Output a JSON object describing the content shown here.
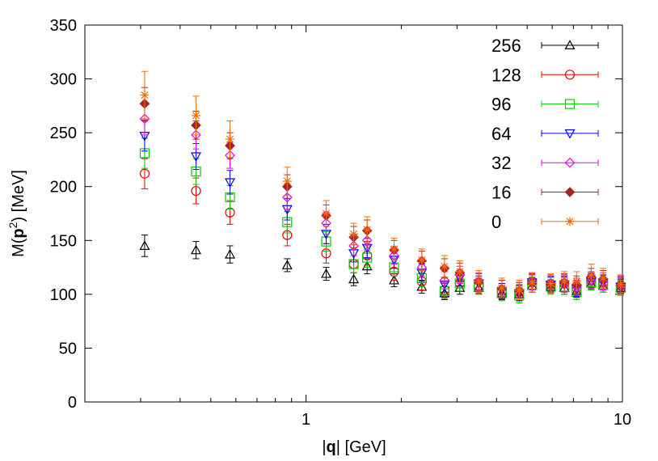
{
  "chart_data": {
    "type": "scatter",
    "title": "",
    "xlabel": {
      "pre": "|",
      "bold": "q",
      "post": "| [GeV]"
    },
    "ylabel": {
      "pre": "M(",
      "bold": "p",
      "sup": "2",
      "post": ") [MeV]"
    },
    "xscale": "log",
    "xlim": [
      0.2,
      10
    ],
    "ylim": [
      0,
      350
    ],
    "xticks": [
      {
        "v": 1,
        "label": "1"
      },
      {
        "v": 10,
        "label": "10"
      }
    ],
    "yticks": [
      {
        "v": 0,
        "label": "0"
      },
      {
        "v": 50,
        "label": "50"
      },
      {
        "v": 100,
        "label": "100"
      },
      {
        "v": 150,
        "label": "150"
      },
      {
        "v": 200,
        "label": "200"
      },
      {
        "v": 250,
        "label": "250"
      },
      {
        "v": 300,
        "label": "300"
      },
      {
        "v": 350,
        "label": "350"
      }
    ],
    "grid": false,
    "legend_position": "top-right",
    "x": [
      0.309,
      0.449,
      0.575,
      0.872,
      1.158,
      1.415,
      1.56,
      1.898,
      2.322,
      2.74,
      3.062,
      3.515,
      4.157,
      4.718,
      5.181,
      5.936,
      6.552,
      7.166,
      7.967,
      8.69,
      9.874
    ],
    "series": [
      {
        "name": "256",
        "marker": "triangle-up",
        "color": "#000000",
        "y": [
          145,
          141,
          137,
          127,
          119,
          114,
          126,
          113,
          107,
          101,
          106,
          106,
          101,
          100,
          108,
          107,
          106,
          103,
          110,
          108,
          106
        ],
        "err": [
          10,
          8,
          8,
          6,
          6,
          6,
          7,
          6,
          6,
          6,
          6,
          6,
          6,
          6,
          6,
          6,
          6,
          6,
          6,
          6,
          6
        ]
      },
      {
        "name": "128",
        "marker": "circle",
        "color": "#ee0000",
        "y": [
          212,
          196,
          176,
          155,
          138,
          128,
          136,
          121,
          112,
          104,
          110,
          108,
          103,
          102,
          112,
          109,
          110,
          106,
          113,
          111,
          108
        ],
        "err": [
          14,
          12,
          11,
          10,
          9,
          8,
          9,
          8,
          8,
          7,
          7,
          7,
          7,
          7,
          7,
          7,
          7,
          7,
          7,
          7,
          7
        ]
      },
      {
        "name": "96",
        "marker": "square",
        "color": "#00cc00",
        "y": [
          231,
          214,
          190,
          167,
          149,
          128,
          134,
          125,
          115,
          103,
          110,
          107,
          101,
          99,
          109,
          107,
          107,
          102,
          111,
          109,
          106
        ],
        "err": [
          14,
          12,
          11,
          10,
          9,
          8,
          9,
          8,
          8,
          7,
          7,
          7,
          7,
          7,
          7,
          7,
          7,
          7,
          7,
          7,
          7
        ]
      },
      {
        "name": "64",
        "marker": "triangle-down",
        "color": "#0000ee",
        "y": [
          247,
          228,
          204,
          179,
          156,
          138,
          143,
          132,
          120,
          109,
          115,
          110,
          103,
          101,
          111,
          109,
          109,
          105,
          112,
          111,
          107
        ],
        "err": [
          14,
          12,
          11,
          10,
          9,
          8,
          9,
          8,
          8,
          7,
          7,
          7,
          7,
          7,
          7,
          7,
          7,
          7,
          7,
          7,
          7
        ]
      },
      {
        "name": "32",
        "marker": "diamond",
        "color": "#ee00ee",
        "y": [
          263,
          248,
          229,
          190,
          166,
          145,
          150,
          136,
          125,
          113,
          118,
          112,
          105,
          103,
          112,
          110,
          110,
          107,
          113,
          112,
          108
        ],
        "err": [
          15,
          13,
          12,
          11,
          10,
          9,
          9,
          8,
          8,
          8,
          8,
          8,
          8,
          8,
          8,
          8,
          8,
          8,
          8,
          8,
          8
        ]
      },
      {
        "name": "16",
        "marker": "diamond-filled",
        "color": "#aa2222",
        "y": [
          277,
          257,
          238,
          200,
          173,
          153,
          159,
          141,
          131,
          124,
          120,
          111,
          105,
          103,
          110,
          109,
          111,
          109,
          116,
          114,
          109
        ],
        "err": [
          15,
          13,
          12,
          11,
          10,
          10,
          10,
          9,
          9,
          9,
          9,
          8,
          8,
          8,
          8,
          8,
          8,
          8,
          8,
          8,
          8
        ]
      },
      {
        "name": "0",
        "marker": "asterisk",
        "color": "#ff6a00",
        "y": [
          285,
          266,
          244,
          205,
          175,
          156,
          160,
          142,
          132,
          126,
          121,
          112,
          106,
          104,
          111,
          110,
          112,
          112,
          118,
          115,
          109
        ],
        "err": [
          22,
          18,
          17,
          13,
          12,
          10,
          12,
          10,
          10,
          10,
          10,
          10,
          9,
          9,
          9,
          9,
          9,
          9,
          10,
          9,
          9
        ]
      }
    ]
  }
}
